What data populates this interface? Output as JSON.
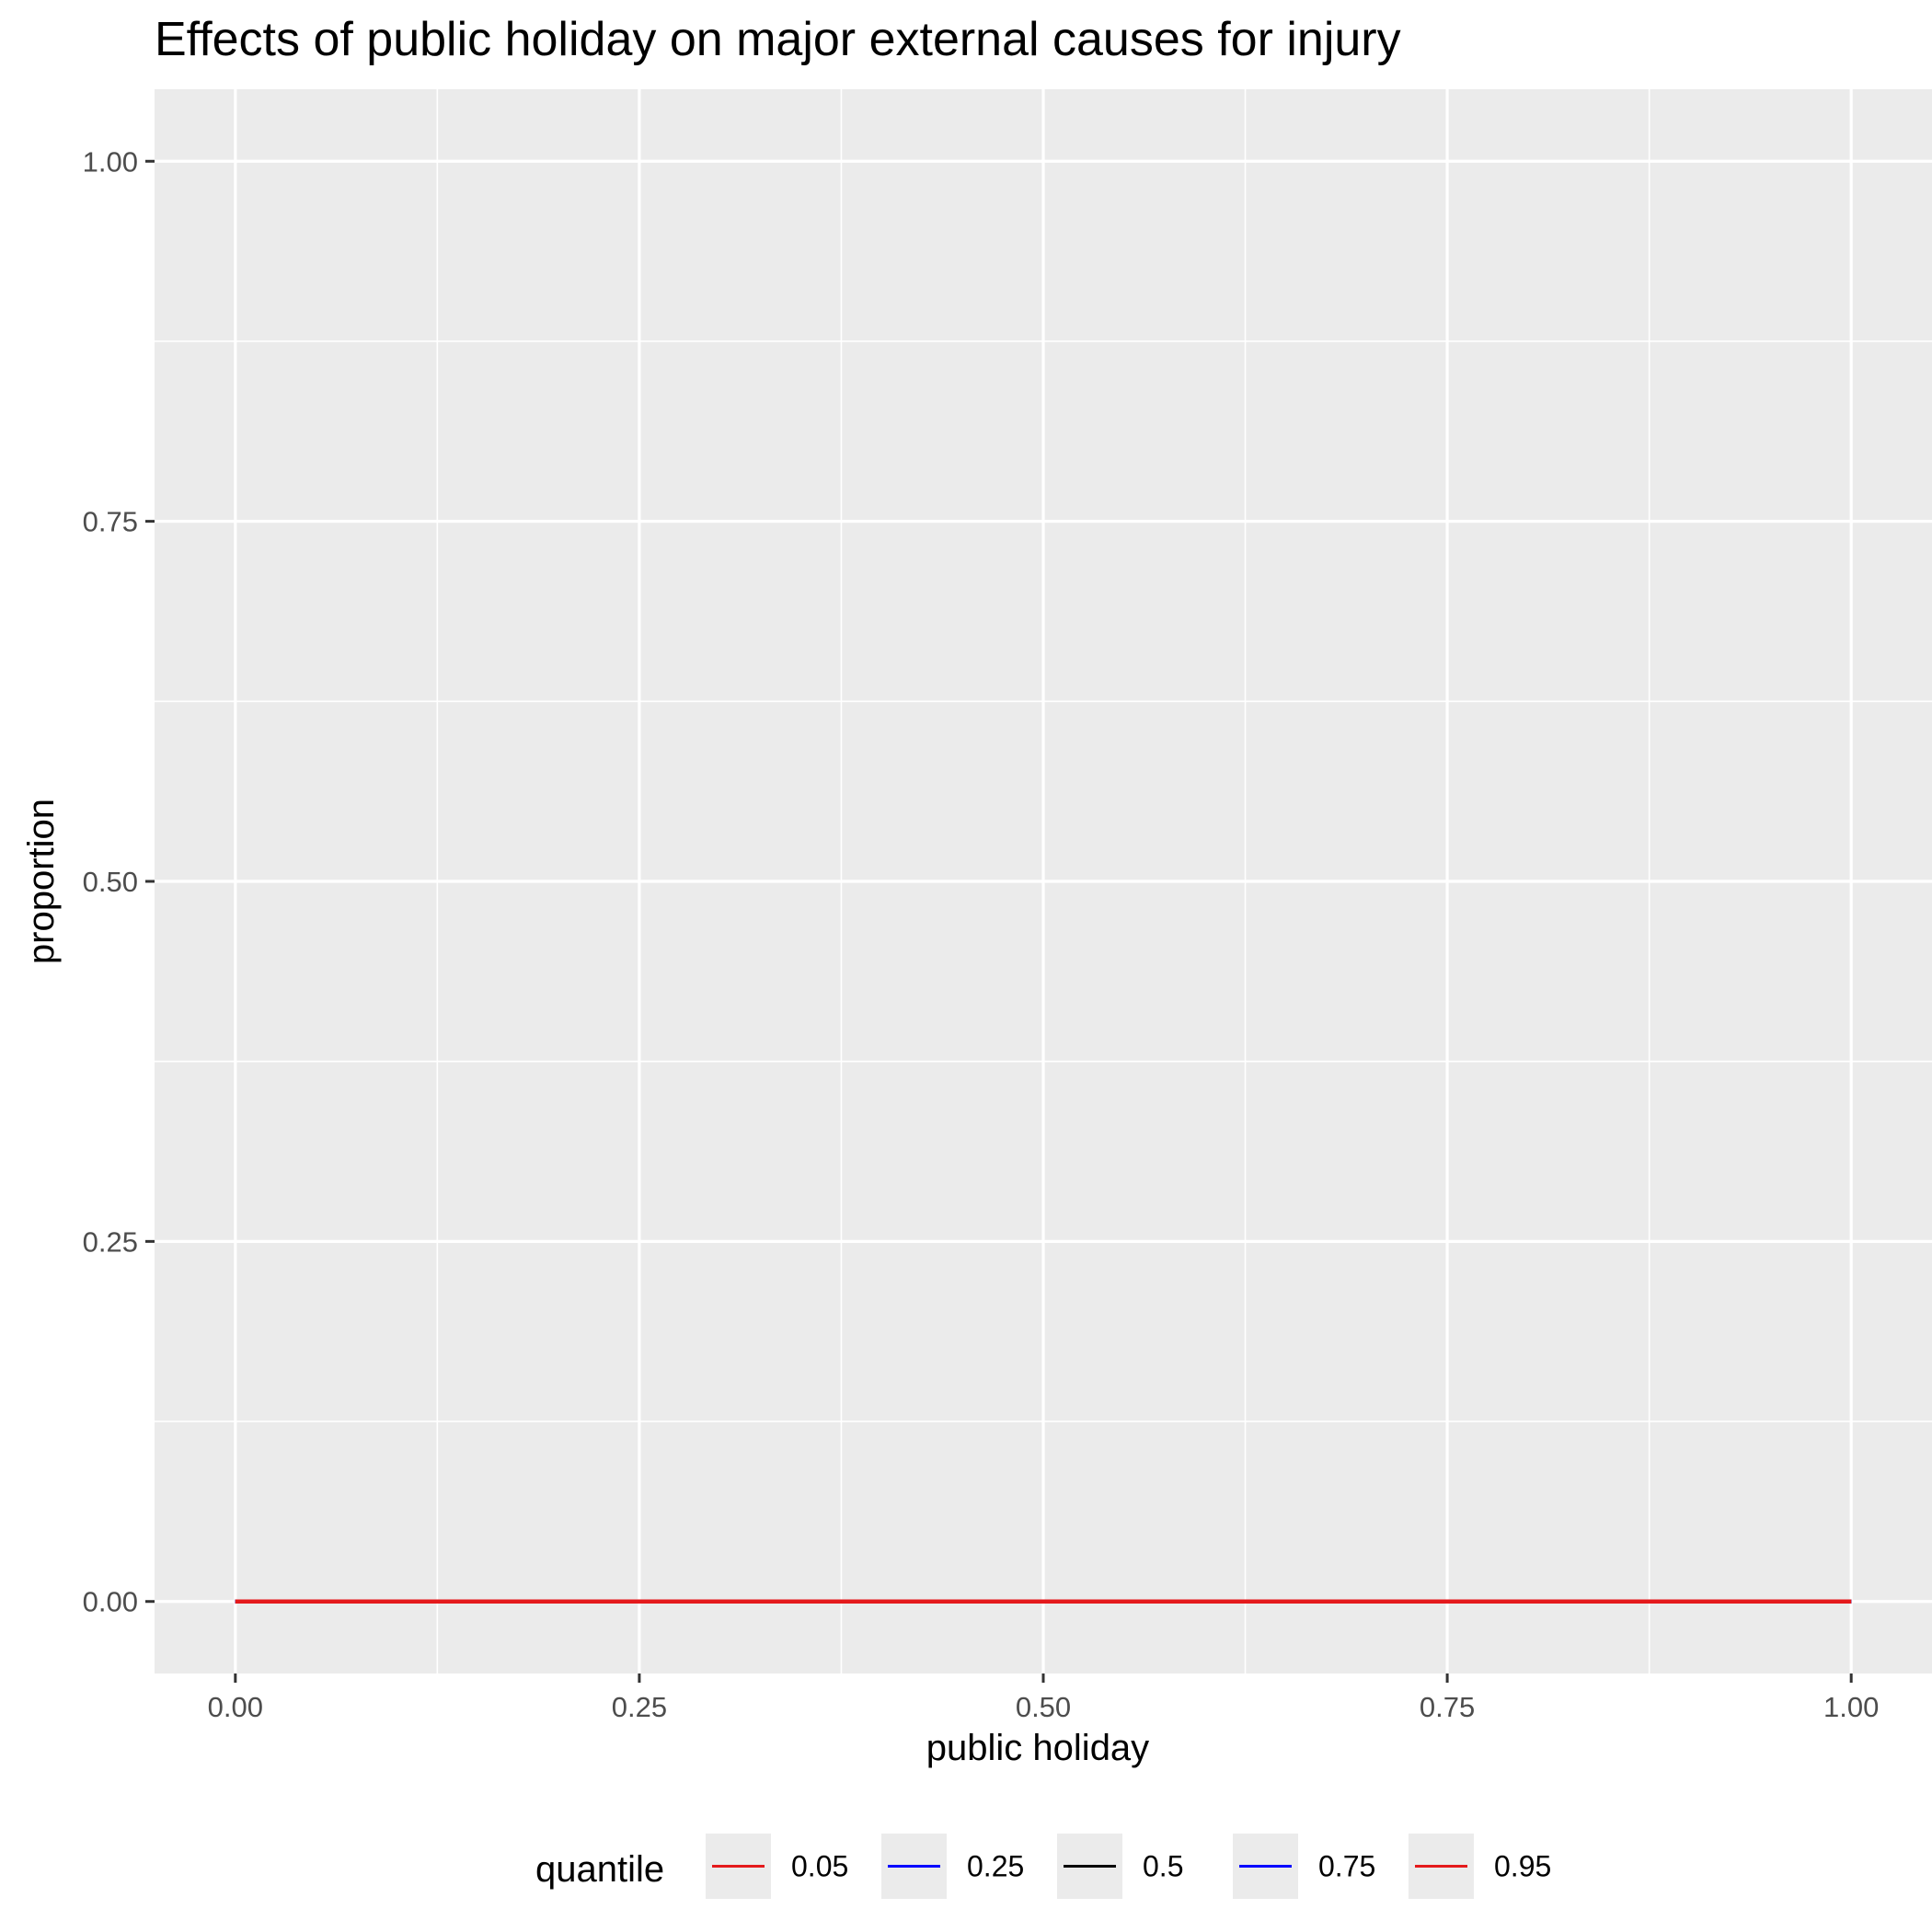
{
  "chart_data": {
    "type": "line",
    "title": "Effects of public holiday on major external causes for injury",
    "xlabel": "public holiday",
    "ylabel": "proportion",
    "xlim": [
      -0.05,
      1.05
    ],
    "ylim": [
      -0.05,
      1.05
    ],
    "x_ticks": [
      0,
      0.25,
      0.5,
      0.75,
      1
    ],
    "x_tick_labels": [
      "0.00",
      "0.25",
      "0.50",
      "0.75",
      "1.00"
    ],
    "y_ticks": [
      0,
      0.25,
      0.5,
      0.75,
      1
    ],
    "y_tick_labels": [
      "0.00",
      "0.25",
      "0.50",
      "0.75",
      "1.00"
    ],
    "grid": true,
    "legend": {
      "title": "quantile",
      "position": "bottom"
    },
    "series": [
      {
        "name": "0.05",
        "color": "#e41a1c",
        "x": [
          0,
          1
        ],
        "y": [
          0,
          0
        ]
      },
      {
        "name": "0.25",
        "color": "#0000ff",
        "x": [
          0,
          1
        ],
        "y": [
          0,
          0
        ]
      },
      {
        "name": "0.5",
        "color": "#000000",
        "x": [
          0,
          1
        ],
        "y": [
          0,
          0
        ]
      },
      {
        "name": "0.75",
        "color": "#0000ff",
        "x": [
          0,
          1
        ],
        "y": [
          0,
          0
        ]
      },
      {
        "name": "0.95",
        "color": "#e41a1c",
        "x": [
          0,
          1
        ],
        "y": [
          0,
          0
        ]
      }
    ]
  }
}
